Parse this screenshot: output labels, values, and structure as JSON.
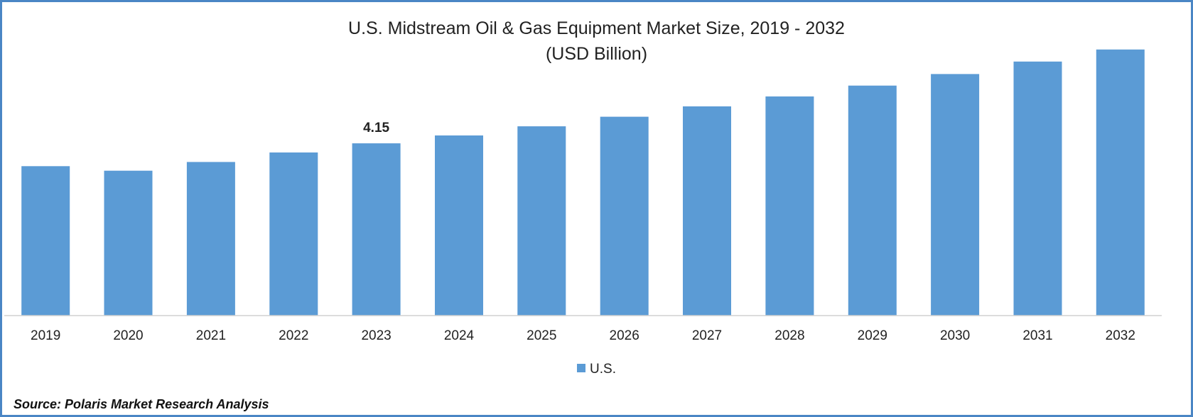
{
  "chart_data": {
    "type": "bar",
    "title": "U.S. Midstream Oil & Gas Equipment Market Size, 2019 - 2032",
    "subtitle": "(USD Billion)",
    "categories": [
      "2019",
      "2020",
      "2021",
      "2022",
      "2023",
      "2024",
      "2025",
      "2026",
      "2027",
      "2028",
      "2029",
      "2030",
      "2031",
      "2032"
    ],
    "series": [
      {
        "name": "U.S.",
        "color": "#5b9bd5",
        "values": [
          3.6,
          3.49,
          3.7,
          3.93,
          4.15,
          4.34,
          4.56,
          4.79,
          5.04,
          5.28,
          5.54,
          5.82,
          6.12,
          6.41
        ],
        "data_labels": {
          "2023": "4.15"
        }
      }
    ],
    "ylim": [
      0,
      6.8
    ],
    "grid": false,
    "legend_position": "bottom"
  },
  "source_text": "Source: Polaris Market Research Analysis"
}
